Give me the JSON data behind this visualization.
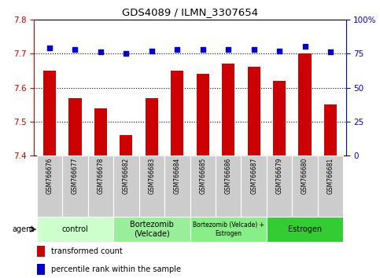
{
  "title": "GDS4089 / ILMN_3307654",
  "samples": [
    "GSM766676",
    "GSM766677",
    "GSM766678",
    "GSM766682",
    "GSM766683",
    "GSM766684",
    "GSM766685",
    "GSM766686",
    "GSM766687",
    "GSM766679",
    "GSM766680",
    "GSM766681"
  ],
  "bar_values": [
    7.65,
    7.57,
    7.54,
    7.46,
    7.57,
    7.65,
    7.64,
    7.67,
    7.66,
    7.62,
    7.7,
    7.55
  ],
  "percentile_values": [
    79,
    78,
    76,
    75,
    77,
    78,
    78,
    78,
    78,
    77,
    80,
    76
  ],
  "ylim_left": [
    7.4,
    7.8
  ],
  "ylim_right": [
    0,
    100
  ],
  "yticks_left": [
    7.4,
    7.5,
    7.6,
    7.7,
    7.8
  ],
  "yticks_right": [
    0,
    25,
    50,
    75,
    100
  ],
  "bar_color": "#cc0000",
  "dot_color": "#0000cc",
  "groups": [
    {
      "label": "control",
      "start": 0,
      "end": 3,
      "color": "#ccffcc"
    },
    {
      "label": "Bortezomib\n(Velcade)",
      "start": 3,
      "end": 6,
      "color": "#99ee99"
    },
    {
      "label": "Bortezomib (Velcade) +\nEstrogen",
      "start": 6,
      "end": 9,
      "color": "#88ee88"
    },
    {
      "label": "Estrogen",
      "start": 9,
      "end": 12,
      "color": "#33cc33"
    }
  ],
  "legend_bar_label": "transformed count",
  "legend_dot_label": "percentile rank within the sample",
  "xticklabel_bg": "#cccccc",
  "bar_width": 0.5
}
